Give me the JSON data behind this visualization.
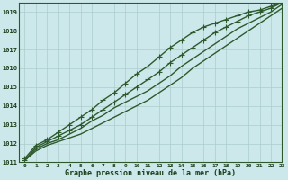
{
  "title": "Graphe pression niveau de la mer (hPa)",
  "bg_color": "#cce8ea",
  "grid_color": "#aacccc",
  "line_color": "#2d5a2d",
  "text_color": "#1a3d1a",
  "xlim": [
    -0.5,
    23
  ],
  "ylim": [
    1011.0,
    1019.5
  ],
  "xticks": [
    0,
    1,
    2,
    3,
    4,
    5,
    6,
    7,
    8,
    9,
    10,
    11,
    12,
    13,
    14,
    15,
    16,
    17,
    18,
    19,
    20,
    21,
    22,
    23
  ],
  "yticks": [
    1011,
    1012,
    1013,
    1014,
    1015,
    1016,
    1017,
    1018,
    1019
  ],
  "lines": [
    {
      "x": [
        0,
        1,
        2,
        3,
        4,
        5,
        6,
        7,
        8,
        9,
        10,
        11,
        12,
        13,
        14,
        15,
        16,
        17,
        18,
        19,
        20,
        21,
        22,
        23
      ],
      "y": [
        1011.1,
        1011.6,
        1011.9,
        1012.1,
        1012.3,
        1012.5,
        1012.8,
        1013.1,
        1013.4,
        1013.7,
        1014.0,
        1014.3,
        1014.7,
        1015.1,
        1015.5,
        1016.0,
        1016.4,
        1016.8,
        1017.2,
        1017.6,
        1018.0,
        1018.4,
        1018.8,
        1019.2
      ],
      "marker": null,
      "linewidth": 1.0
    },
    {
      "x": [
        0,
        1,
        2,
        3,
        4,
        5,
        6,
        7,
        8,
        9,
        10,
        11,
        12,
        13,
        14,
        15,
        16,
        17,
        18,
        19,
        20,
        21,
        22,
        23
      ],
      "y": [
        1011.1,
        1011.7,
        1012.0,
        1012.2,
        1012.5,
        1012.8,
        1013.2,
        1013.5,
        1013.9,
        1014.2,
        1014.5,
        1014.8,
        1015.2,
        1015.6,
        1016.1,
        1016.5,
        1016.9,
        1017.3,
        1017.7,
        1018.1,
        1018.4,
        1018.7,
        1019.0,
        1019.4
      ],
      "marker": null,
      "linewidth": 1.0
    },
    {
      "x": [
        0,
        1,
        2,
        3,
        4,
        5,
        6,
        7,
        8,
        9,
        10,
        11,
        12,
        13,
        14,
        15,
        16,
        17,
        18,
        19,
        20,
        21,
        22,
        23
      ],
      "y": [
        1011.1,
        1011.8,
        1012.1,
        1012.4,
        1012.7,
        1013.0,
        1013.4,
        1013.8,
        1014.2,
        1014.6,
        1015.0,
        1015.4,
        1015.8,
        1016.3,
        1016.7,
        1017.1,
        1017.5,
        1017.9,
        1018.2,
        1018.5,
        1018.8,
        1019.0,
        1019.2,
        1019.5
      ],
      "marker": "+",
      "markersize": 4,
      "linewidth": 1.0
    },
    {
      "x": [
        0,
        1,
        2,
        3,
        4,
        5,
        6,
        7,
        8,
        9,
        10,
        11,
        12,
        13,
        14,
        15,
        16,
        17,
        18,
        19,
        20,
        21,
        22,
        23
      ],
      "y": [
        1011.2,
        1011.9,
        1012.2,
        1012.6,
        1013.0,
        1013.4,
        1013.8,
        1014.3,
        1014.7,
        1015.2,
        1015.7,
        1016.1,
        1016.6,
        1017.1,
        1017.5,
        1017.9,
        1018.2,
        1018.4,
        1018.6,
        1018.8,
        1019.0,
        1019.1,
        1019.3,
        1019.5
      ],
      "marker": "+",
      "markersize": 4,
      "linewidth": 1.0
    }
  ]
}
